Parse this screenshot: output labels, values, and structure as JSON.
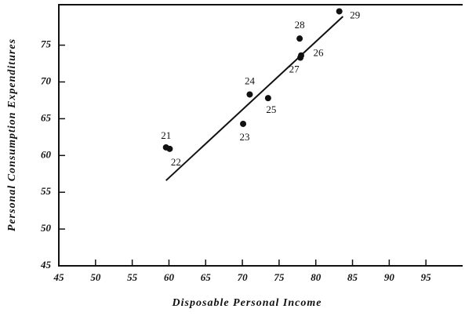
{
  "chart_data": {
    "type": "scatter",
    "xlabel": "Disposable Personal Income",
    "ylabel": "Personal Consumption Expenditures",
    "x": [
      59.6,
      60.1,
      70.1,
      71.0,
      73.5,
      78.0,
      77.9,
      77.8,
      83.2
    ],
    "values": [
      61.1,
      60.9,
      64.3,
      68.3,
      67.8,
      73.6,
      73.3,
      75.9,
      79.6
    ],
    "point_labels": [
      "21",
      "22",
      "23",
      "24",
      "25",
      "26",
      "27",
      "28",
      "29"
    ],
    "trend_line": {
      "x": [
        59.6,
        83.7
      ],
      "y": [
        56.6,
        78.9
      ]
    },
    "color": "#111111",
    "xlim": [
      45,
      100
    ],
    "xticks": [
      45,
      50,
      55,
      60,
      65,
      70,
      75,
      80,
      85,
      90,
      95
    ],
    "ylim": [
      45,
      80.5
    ],
    "yticks": [
      45,
      50,
      55,
      60,
      65,
      70,
      75
    ]
  }
}
